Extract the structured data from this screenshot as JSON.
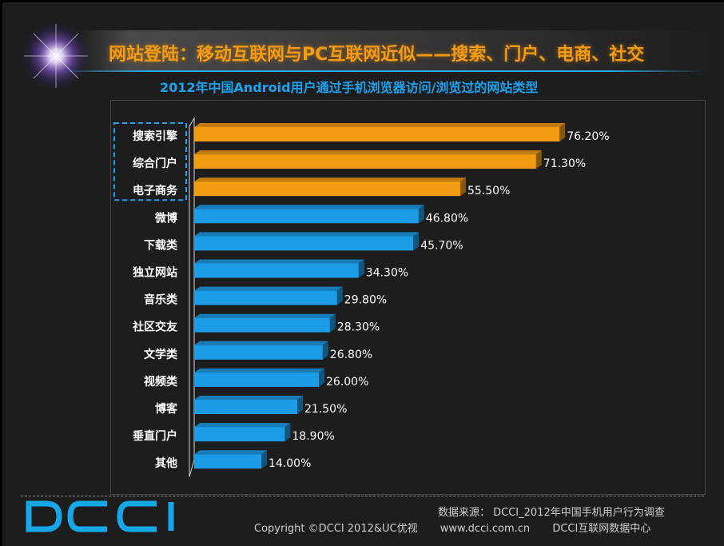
{
  "header": {
    "title": "网站登陆：移动互联网与PC互联网近似——搜索、门户、电商、社交",
    "subtitle": "2012年中国Android用户通过手机浏览器访问/浏览过的网站类型"
  },
  "colors": {
    "highlight": "#f39c12",
    "normal": "#1c9ce6",
    "title": "#f39c12",
    "subtitle": "#1aa3f0"
  },
  "chart_data": {
    "type": "bar",
    "orientation": "horizontal",
    "title": "2012年中国Android用户通过手机浏览器访问/浏览过的网站类型",
    "categories": [
      "搜索引擎",
      "综合门户",
      "电子商务",
      "微博",
      "下载类",
      "独立网站",
      "音乐类",
      "社区交友",
      "文学类",
      "视频类",
      "博客",
      "垂直门户",
      "其他"
    ],
    "values": [
      76.2,
      71.3,
      55.5,
      46.8,
      45.7,
      34.3,
      29.8,
      28.3,
      26.8,
      26.0,
      21.5,
      18.9,
      14.0
    ],
    "value_labels": [
      "76.20%",
      "71.30%",
      "55.50%",
      "46.80%",
      "45.70%",
      "34.30%",
      "29.80%",
      "28.30%",
      "26.80%",
      "26.00%",
      "21.50%",
      "18.90%",
      "14.00%"
    ],
    "highlighted": [
      "搜索引擎",
      "综合门户",
      "电子商务"
    ],
    "xlim": [
      0,
      100
    ],
    "grid": false,
    "legend": "none"
  },
  "footer": {
    "source": "数据来源： DCCI_2012年中国手机用户行为调查",
    "copyright": "Copyright ©DCCI 2012&UC优视",
    "website": "www.dcci.com.cn",
    "org": "DCCI互联网数据中心",
    "logo_text": "DCCI"
  }
}
